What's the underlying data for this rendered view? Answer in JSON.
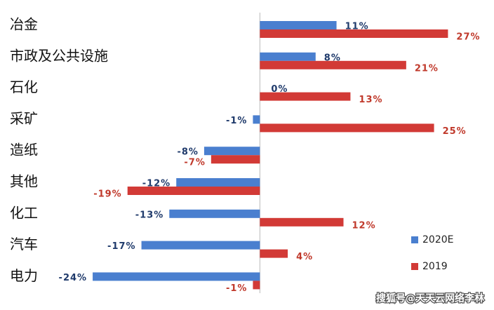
{
  "chart_data": {
    "type": "bar",
    "orientation": "horizontal",
    "categories": [
      "冶金",
      "市政及公共设施",
      "石化",
      "采矿",
      "造纸",
      "其他",
      "化工",
      "汽车",
      "电力"
    ],
    "series": [
      {
        "name": "2020E",
        "color": "#4a7fcf",
        "label_color": "#1f3a6b",
        "values": [
          11,
          8,
          0,
          -1,
          -8,
          -12,
          -13,
          -17,
          -24
        ],
        "value_labels": [
          "11%",
          "8%",
          "0%",
          "-1%",
          "-8%",
          "-12%",
          "-13%",
          "-17%",
          "-24%"
        ]
      },
      {
        "name": "2019",
        "color": "#d23a36",
        "label_color": "#c0392b",
        "values": [
          27,
          21,
          13,
          25,
          -7,
          -19,
          12,
          4,
          -1
        ],
        "value_labels": [
          "27%",
          "21%",
          "13%",
          "25%",
          "-7%",
          "-19%",
          "12%",
          "4%",
          "-1%"
        ]
      }
    ],
    "xlim": [
      -37,
      33
    ],
    "legend": "bottom-right",
    "watermark": "搜狐号@天天云网络李林"
  }
}
